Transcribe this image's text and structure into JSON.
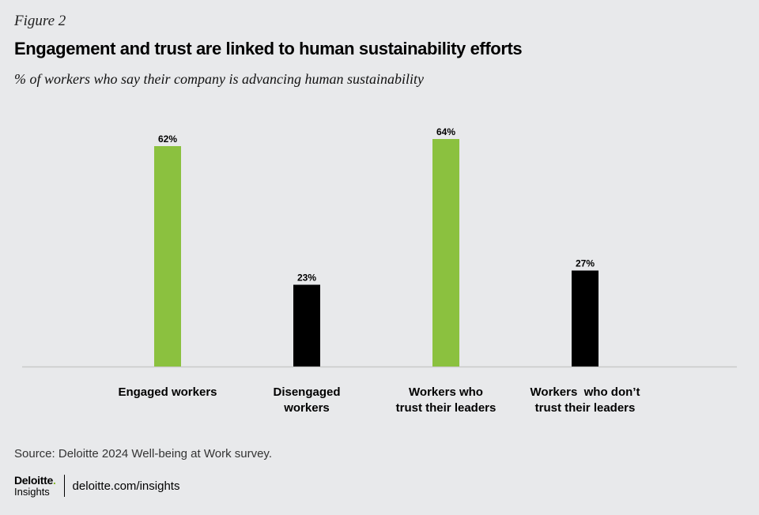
{
  "figure_label": "Figure 2",
  "title": "Engagement and trust are linked to human sustainability efforts",
  "subtitle": "% of workers who say their company is advancing human sustainability",
  "source": "Source: Deloitte 2024 Well-being at Work survey.",
  "footer": {
    "logo_main": "Deloitte",
    "logo_dot": ".",
    "logo_sub": "Insights",
    "link": "deloitte.com/insights"
  },
  "colors": {
    "green": "#8bc13f",
    "black": "#000000",
    "baseline": "#c9c9c9"
  },
  "chart_data": {
    "type": "bar",
    "title": "Engagement and trust are linked to human sustainability efforts",
    "subtitle": "% of workers who say their company is advancing human sustainability",
    "xlabel": "",
    "ylabel": "",
    "ylim": [
      0,
      70
    ],
    "grid": false,
    "unit": "%",
    "categories": [
      [
        "Engaged workers"
      ],
      [
        "Disengaged",
        "workers"
      ],
      [
        "Workers who",
        "trust their leaders"
      ],
      [
        "Workers  who don’t",
        "trust their leaders"
      ]
    ],
    "values": [
      62,
      23,
      64,
      27
    ],
    "bar_colors": [
      "green",
      "black",
      "green",
      "black"
    ],
    "data_labels": [
      "62%",
      "23%",
      "64%",
      "27%"
    ]
  }
}
